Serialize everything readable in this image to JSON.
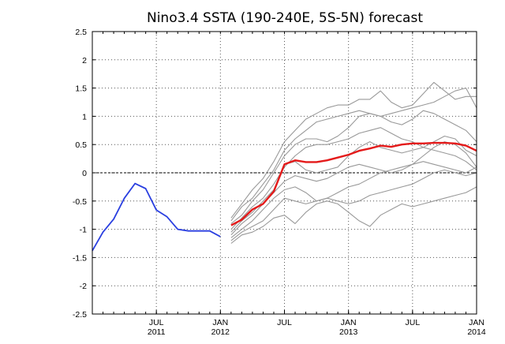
{
  "chart_data": {
    "type": "line",
    "title": "Nino3.4 SSTA (190-240E, 5S-5N) forecast",
    "xlabel": "",
    "ylabel": "",
    "ylim": [
      -2.5,
      2.5
    ],
    "yticks": [
      -2.5,
      -2,
      -1.5,
      -1,
      -0.5,
      0,
      0.5,
      1,
      1.5,
      2,
      2.5
    ],
    "ytick_labels": [
      "-2.5",
      "-2",
      "-1.5",
      "-1",
      "-0.5",
      "0",
      "0.5",
      "1",
      "1.5",
      "2",
      "2.5"
    ],
    "x_range": [
      "2011-01",
      "2014-01"
    ],
    "xticks": [
      {
        "date": "2011-07",
        "month": "JUL",
        "year": "2011"
      },
      {
        "date": "2012-01",
        "month": "JAN",
        "year": "2012"
      },
      {
        "date": "2012-07",
        "month": "JUL",
        "year": ""
      },
      {
        "date": "2013-01",
        "month": "JAN",
        "year": "2013"
      },
      {
        "date": "2013-07",
        "month": "JUL",
        "year": ""
      },
      {
        "date": "2014-01",
        "month": "JAN",
        "year": "2014"
      }
    ],
    "grid": true,
    "zero_line": true,
    "colors": {
      "observed": "#2a3fe0",
      "ensemble_mean": "#e41a1a",
      "members": "#999999"
    },
    "series": [
      {
        "role": "observed",
        "x": [
          "2011-01",
          "2011-02",
          "2011-03",
          "2011-04",
          "2011-05",
          "2011-06",
          "2011-07",
          "2011-08",
          "2011-09",
          "2011-10",
          "2011-11",
          "2011-12",
          "2012-01"
        ],
        "values": [
          -1.38,
          -1.05,
          -0.82,
          -0.45,
          -0.19,
          -0.28,
          -0.66,
          -0.78,
          -1.0,
          -1.03,
          -1.03,
          -1.03,
          -1.13
        ]
      },
      {
        "role": "ensemble_mean",
        "x": [
          "2012-02",
          "2012-03",
          "2012-04",
          "2012-05",
          "2012-06",
          "2012-07",
          "2012-08",
          "2012-09",
          "2012-10",
          "2012-11",
          "2012-12",
          "2013-01",
          "2013-02",
          "2013-03",
          "2013-04",
          "2013-05",
          "2013-06",
          "2013-07",
          "2013-08",
          "2013-09",
          "2013-10",
          "2013-11",
          "2013-12",
          "2014-01"
        ],
        "values": [
          -0.93,
          -0.83,
          -0.65,
          -0.55,
          -0.33,
          0.15,
          0.22,
          0.19,
          0.19,
          0.22,
          0.27,
          0.32,
          0.39,
          0.43,
          0.48,
          0.46,
          0.5,
          0.52,
          0.52,
          0.53,
          0.53,
          0.52,
          0.48,
          0.39
        ]
      },
      {
        "role": "member",
        "x": [
          "2012-02",
          "2012-03",
          "2012-04",
          "2012-05",
          "2012-06",
          "2012-07",
          "2012-08",
          "2012-09",
          "2012-10",
          "2012-11",
          "2012-12",
          "2013-01",
          "2013-02",
          "2013-03",
          "2013-04",
          "2013-05",
          "2013-06",
          "2013-07",
          "2013-08",
          "2013-09",
          "2013-10",
          "2013-11",
          "2013-12",
          "2014-01"
        ],
        "values": [
          -0.8,
          -0.55,
          -0.3,
          -0.1,
          0.2,
          0.55,
          0.75,
          0.95,
          1.05,
          1.15,
          1.2,
          1.2,
          1.3,
          1.3,
          1.45,
          1.25,
          1.15,
          1.2,
          1.4,
          1.6,
          1.45,
          1.3,
          1.35,
          1.35
        ]
      },
      {
        "role": "member",
        "x": [
          "2012-02",
          "2012-03",
          "2012-04",
          "2012-05",
          "2012-06",
          "2012-07",
          "2012-08",
          "2012-09",
          "2012-10",
          "2012-11",
          "2012-12",
          "2013-01",
          "2013-02",
          "2013-03",
          "2013-04",
          "2013-05",
          "2013-06",
          "2013-07",
          "2013-08",
          "2013-09",
          "2013-10",
          "2013-11",
          "2013-12",
          "2014-01"
        ],
        "values": [
          -0.85,
          -0.6,
          -0.45,
          -0.2,
          0.05,
          0.4,
          0.6,
          0.75,
          0.9,
          0.95,
          1.0,
          1.05,
          1.1,
          1.05,
          1.0,
          1.05,
          1.1,
          1.15,
          1.2,
          1.25,
          1.35,
          1.45,
          1.5,
          1.15
        ]
      },
      {
        "role": "member",
        "x": [
          "2012-02",
          "2012-03",
          "2012-04",
          "2012-05",
          "2012-06",
          "2012-07",
          "2012-08",
          "2012-09",
          "2012-10",
          "2012-11",
          "2012-12",
          "2013-01",
          "2013-02",
          "2013-03",
          "2013-04",
          "2013-05",
          "2013-06",
          "2013-07",
          "2013-08",
          "2013-09",
          "2013-10",
          "2013-11",
          "2013-12",
          "2014-01"
        ],
        "values": [
          -0.9,
          -0.75,
          -0.5,
          -0.3,
          0.0,
          0.3,
          0.5,
          0.6,
          0.6,
          0.55,
          0.65,
          0.8,
          1.0,
          1.05,
          1.0,
          0.9,
          0.85,
          0.95,
          1.1,
          1.05,
          0.95,
          0.85,
          0.75,
          0.55
        ]
      },
      {
        "role": "member",
        "x": [
          "2012-02",
          "2012-03",
          "2012-04",
          "2012-05",
          "2012-06",
          "2012-07",
          "2012-08",
          "2012-09",
          "2012-10",
          "2012-11",
          "2012-12",
          "2013-01",
          "2013-02",
          "2013-03",
          "2013-04",
          "2013-05",
          "2013-06",
          "2013-07",
          "2013-08",
          "2013-09",
          "2013-10",
          "2013-11",
          "2013-12",
          "2014-01"
        ],
        "values": [
          -1.0,
          -0.8,
          -0.6,
          -0.45,
          -0.2,
          0.1,
          0.3,
          0.45,
          0.5,
          0.5,
          0.55,
          0.6,
          0.7,
          0.75,
          0.8,
          0.7,
          0.6,
          0.55,
          0.45,
          0.55,
          0.65,
          0.6,
          0.4,
          0.3
        ]
      },
      {
        "role": "member",
        "x": [
          "2012-02",
          "2012-03",
          "2012-04",
          "2012-05",
          "2012-06",
          "2012-07",
          "2012-08",
          "2012-09",
          "2012-10",
          "2012-11",
          "2012-12",
          "2013-01",
          "2013-02",
          "2013-03",
          "2013-04",
          "2013-05",
          "2013-06",
          "2013-07",
          "2013-08",
          "2013-09",
          "2013-10",
          "2013-11",
          "2013-12",
          "2014-01"
        ],
        "values": [
          -1.05,
          -0.85,
          -0.7,
          -0.5,
          -0.3,
          0.15,
          0.2,
          0.05,
          0.0,
          0.05,
          0.1,
          0.3,
          0.45,
          0.55,
          0.45,
          0.4,
          0.35,
          0.4,
          0.45,
          0.4,
          0.35,
          0.3,
          0.2,
          0.05
        ]
      },
      {
        "role": "member",
        "x": [
          "2012-02",
          "2012-03",
          "2012-04",
          "2012-05",
          "2012-06",
          "2012-07",
          "2012-08",
          "2012-09",
          "2012-10",
          "2012-11",
          "2012-12",
          "2013-01",
          "2013-02",
          "2013-03",
          "2013-04",
          "2013-05",
          "2013-06",
          "2013-07",
          "2013-08",
          "2013-09",
          "2013-10",
          "2013-11",
          "2013-12",
          "2014-01"
        ],
        "values": [
          -1.1,
          -0.9,
          -0.75,
          -0.55,
          -0.35,
          -0.15,
          -0.05,
          -0.1,
          -0.15,
          -0.1,
          0.0,
          0.1,
          0.15,
          0.1,
          0.05,
          0.0,
          0.05,
          0.15,
          0.3,
          0.45,
          0.55,
          0.5,
          0.35,
          0.1
        ]
      },
      {
        "role": "member",
        "x": [
          "2012-02",
          "2012-03",
          "2012-04",
          "2012-05",
          "2012-06",
          "2012-07",
          "2012-08",
          "2012-09",
          "2012-10",
          "2012-11",
          "2012-12",
          "2013-01",
          "2013-02",
          "2013-03",
          "2013-04",
          "2013-05",
          "2013-06",
          "2013-07",
          "2013-08",
          "2013-09",
          "2013-10",
          "2013-11",
          "2013-12",
          "2014-01"
        ],
        "values": [
          -1.15,
          -1.0,
          -0.85,
          -0.65,
          -0.45,
          -0.3,
          -0.25,
          -0.35,
          -0.5,
          -0.45,
          -0.35,
          -0.25,
          -0.2,
          -0.1,
          0.0,
          0.05,
          0.1,
          0.15,
          0.2,
          0.15,
          0.1,
          0.05,
          0.0,
          0.1
        ]
      },
      {
        "role": "member",
        "x": [
          "2012-02",
          "2012-03",
          "2012-04",
          "2012-05",
          "2012-06",
          "2012-07",
          "2012-08",
          "2012-09",
          "2012-10",
          "2012-11",
          "2012-12",
          "2013-01",
          "2013-02",
          "2013-03",
          "2013-04",
          "2013-05",
          "2013-06",
          "2013-07",
          "2013-08",
          "2013-09",
          "2013-10",
          "2013-11",
          "2013-12",
          "2014-01"
        ],
        "values": [
          -1.2,
          -1.05,
          -0.95,
          -0.85,
          -0.65,
          -0.45,
          -0.5,
          -0.55,
          -0.5,
          -0.45,
          -0.5,
          -0.55,
          -0.5,
          -0.4,
          -0.35,
          -0.3,
          -0.25,
          -0.2,
          -0.1,
          0.0,
          0.05,
          0.0,
          -0.05,
          0.0
        ]
      },
      {
        "role": "member",
        "x": [
          "2012-02",
          "2012-03",
          "2012-04",
          "2012-05",
          "2012-06",
          "2012-07",
          "2012-08",
          "2012-09",
          "2012-10",
          "2012-11",
          "2012-12",
          "2013-01",
          "2013-02",
          "2013-03",
          "2013-04",
          "2013-05",
          "2013-06",
          "2013-07",
          "2013-08",
          "2013-09",
          "2013-10",
          "2013-11",
          "2013-12",
          "2014-01"
        ],
        "values": [
          -1.25,
          -1.1,
          -1.05,
          -0.95,
          -0.8,
          -0.75,
          -0.9,
          -0.7,
          -0.55,
          -0.5,
          -0.55,
          -0.7,
          -0.85,
          -0.95,
          -0.75,
          -0.65,
          -0.55,
          -0.6,
          -0.55,
          -0.5,
          -0.45,
          -0.4,
          -0.35,
          -0.25
        ]
      }
    ]
  }
}
